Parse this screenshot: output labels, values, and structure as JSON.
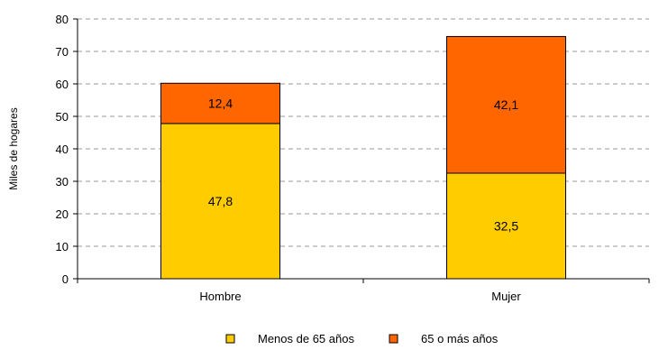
{
  "chart_data": {
    "type": "bar",
    "stacked": true,
    "title": "",
    "xlabel": "",
    "ylabel": "Miles de hogares",
    "ylim": [
      0,
      80
    ],
    "yticks": [
      0,
      10,
      20,
      30,
      40,
      50,
      60,
      70,
      80
    ],
    "grid": true,
    "legend_position": "bottom",
    "categories": [
      "Hombre",
      "Mujer"
    ],
    "series": [
      {
        "name": "Menos de 65 años",
        "values": [
          47.8,
          32.5
        ],
        "value_labels": [
          "47,8",
          "32,5"
        ],
        "color": "#FFCC00"
      },
      {
        "name": "65 o más años",
        "values": [
          12.4,
          42.1
        ],
        "value_labels": [
          "12,4",
          "42,1"
        ],
        "color": "#FF6600"
      }
    ]
  }
}
